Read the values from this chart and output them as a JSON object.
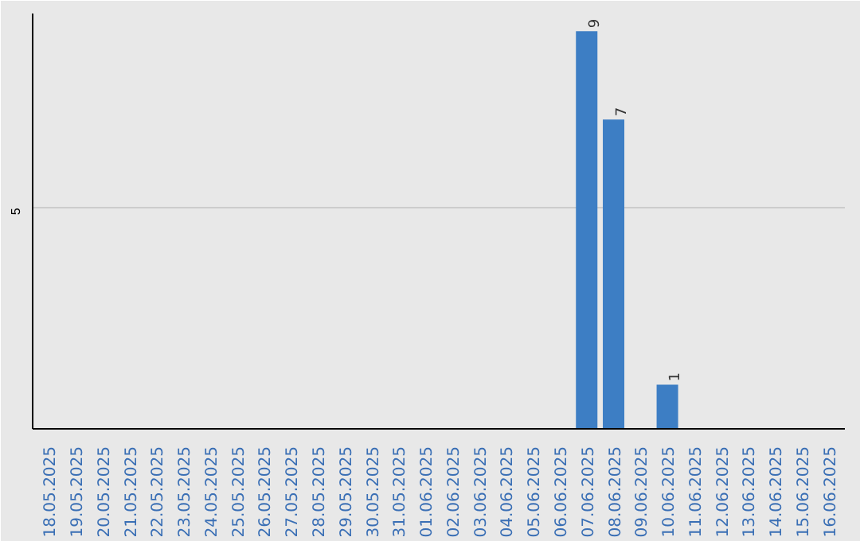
{
  "chart_data": {
    "type": "bar",
    "categories": [
      "18.05.2025",
      "19.05.2025",
      "20.05.2025",
      "21.05.2025",
      "22.05.2025",
      "23.05.2025",
      "24.05.2025",
      "25.05.2025",
      "26.05.2025",
      "27.05.2025",
      "28.05.2025",
      "29.05.2025",
      "30.05.2025",
      "31.05.2025",
      "01.06.2025",
      "02.06.2025",
      "03.06.2025",
      "04.06.2025",
      "05.06.2025",
      "06.06.2025",
      "07.06.2025",
      "08.06.2025",
      "09.06.2025",
      "10.06.2025",
      "11.06.2025",
      "12.06.2025",
      "13.06.2025",
      "14.06.2025",
      "15.06.2025",
      "16.06.2025"
    ],
    "values": [
      null,
      null,
      null,
      null,
      null,
      null,
      null,
      null,
      null,
      null,
      null,
      null,
      null,
      null,
      null,
      null,
      null,
      null,
      null,
      null,
      9,
      7,
      null,
      1,
      null,
      null,
      null,
      null,
      null,
      null
    ],
    "data_labels": true,
    "color": "#3d7ec4",
    "ylim": [
      0,
      9.4
    ],
    "yticks": [
      {
        "value": 0,
        "label": null
      },
      {
        "value": 5,
        "label": "5"
      }
    ],
    "grid": "y"
  }
}
